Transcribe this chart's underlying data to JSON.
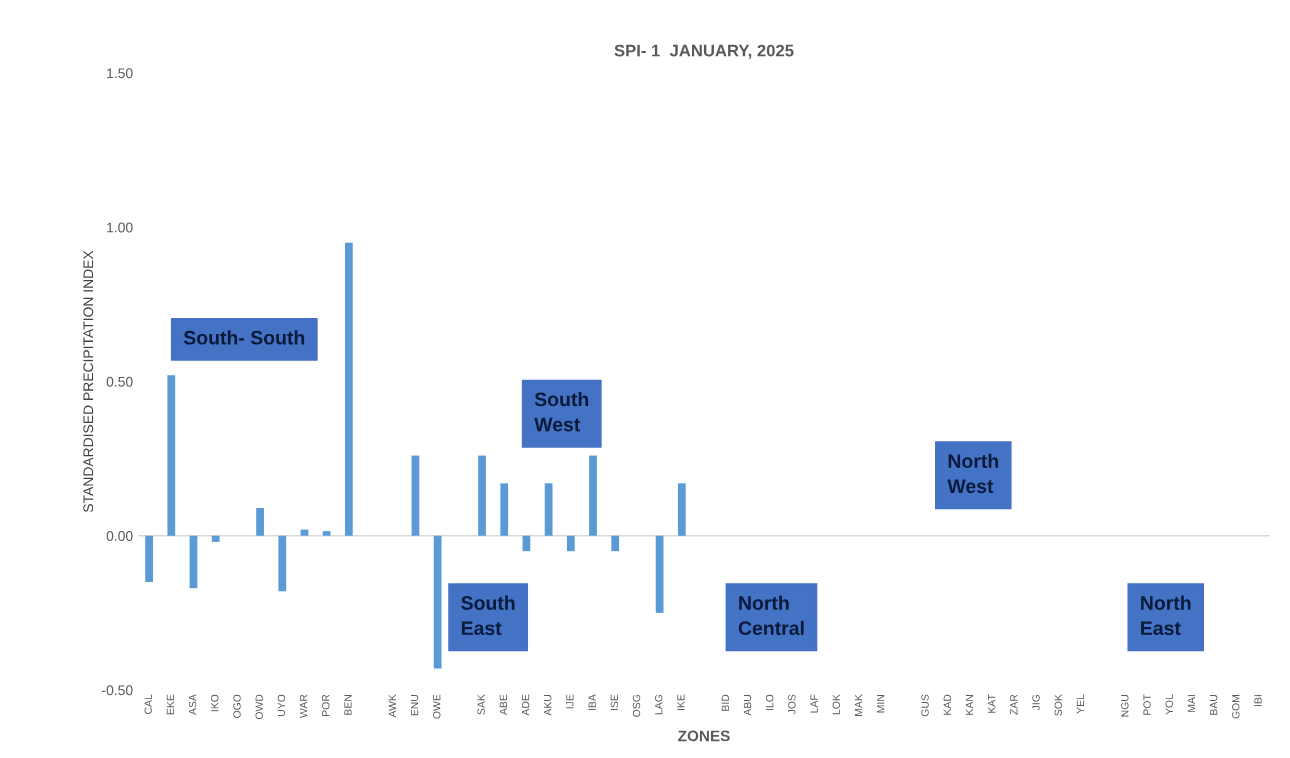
{
  "chart_data": {
    "type": "bar",
    "title": "SPI- 1  JANUARY, 2025",
    "xlabel": "ZONES",
    "ylabel": "STANDARDISED PRECIPITATION INDEX",
    "categories": [
      "CAL",
      "EKE",
      "ASA",
      "IKO",
      "OGO",
      "OWD",
      "UYO",
      "WAR",
      "POR",
      "BEN",
      null,
      "AWK",
      "ENU",
      "OWE",
      null,
      "SAK",
      "ABE",
      "ADE",
      "AKU",
      "IJE",
      "IBA",
      "ISE",
      "OSG",
      "LAG",
      "IKE",
      null,
      "BID",
      "ABU",
      "ILO",
      "JOS",
      "LAF",
      "LOK",
      "MAK",
      "MIN",
      null,
      "GUS",
      "KAD",
      "KAN",
      "KAT",
      "ZAR",
      "JIG",
      "SOK",
      "YEL",
      null,
      "NGU",
      "POT",
      "YOL",
      "MAI",
      "BAU",
      "GOM",
      "IBI"
    ],
    "values": [
      -0.15,
      0.52,
      -0.17,
      -0.02,
      0,
      0.09,
      -0.18,
      0.02,
      0.015,
      0.95,
      null,
      0,
      0.26,
      -0.43,
      null,
      0.26,
      0.17,
      -0.05,
      0.17,
      -0.05,
      0.26,
      -0.05,
      0,
      -0.25,
      0.17,
      null,
      0,
      0,
      0,
      0,
      0,
      0,
      0,
      0,
      null,
      0,
      0,
      0,
      0,
      0,
      0,
      0,
      0,
      null,
      0,
      0,
      0,
      0,
      0,
      0,
      0
    ],
    "color": "#5b9bd5",
    "ylim": [
      -0.5,
      1.5
    ],
    "yticks": [
      {
        "value": -0.5,
        "label": "-0.50"
      },
      {
        "value": 0,
        "label": "0.00"
      },
      {
        "value": 0.5,
        "label": "0.50"
      },
      {
        "value": 1,
        "label": "1.00"
      },
      {
        "value": 1.5,
        "label": "1.50"
      }
    ],
    "grid": false,
    "legend": false,
    "ref_lines": [
      {
        "axis": "y",
        "value": 0,
        "color": "#d9d9d9"
      }
    ],
    "annotations": [
      "South- South",
      "South\nWest",
      "South\nEast",
      "North\nCentral",
      "North\nWest",
      "North\nEast"
    ]
  }
}
